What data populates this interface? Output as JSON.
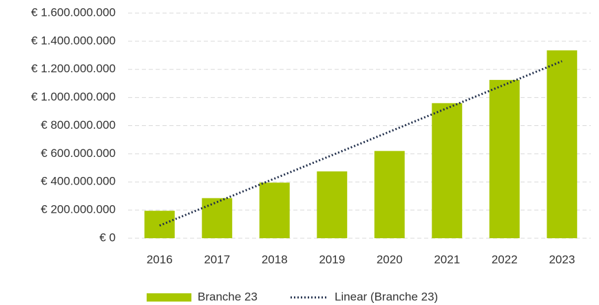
{
  "chart_data": {
    "type": "bar",
    "categories": [
      "2016",
      "2017",
      "2018",
      "2019",
      "2020",
      "2021",
      "2022",
      "2023"
    ],
    "series": [
      {
        "name": "Branche 23",
        "type": "bar",
        "color": "#a8c700",
        "values": [
          195000000,
          285000000,
          395000000,
          475000000,
          620000000,
          960000000,
          1125000000,
          1335000000
        ]
      },
      {
        "name": "Linear (Branche 23)",
        "type": "line",
        "style": "dotted",
        "color": "#1f2d4a",
        "values": [
          90000000,
          257000000,
          424000000,
          590000000,
          757000000,
          924000000,
          1091000000,
          1258000000
        ]
      }
    ],
    "ylim": [
      0,
      1600000000
    ],
    "yticks": [
      {
        "value": 0,
        "label": "€ 0"
      },
      {
        "value": 200000000,
        "label": "€ 200.000.000"
      },
      {
        "value": 400000000,
        "label": "€ 400.000.000"
      },
      {
        "value": 600000000,
        "label": "€ 600.000.000"
      },
      {
        "value": 800000000,
        "label": "€ 800.000.000"
      },
      {
        "value": 1000000000,
        "label": "€ 1.000.000.000"
      },
      {
        "value": 1200000000,
        "label": "€ 1.200.000.000"
      },
      {
        "value": 1400000000,
        "label": "€ 1.400.000.000"
      },
      {
        "value": 1600000000,
        "label": "€ 1.600.000.000"
      }
    ],
    "grid": true,
    "legend": "bottom"
  }
}
